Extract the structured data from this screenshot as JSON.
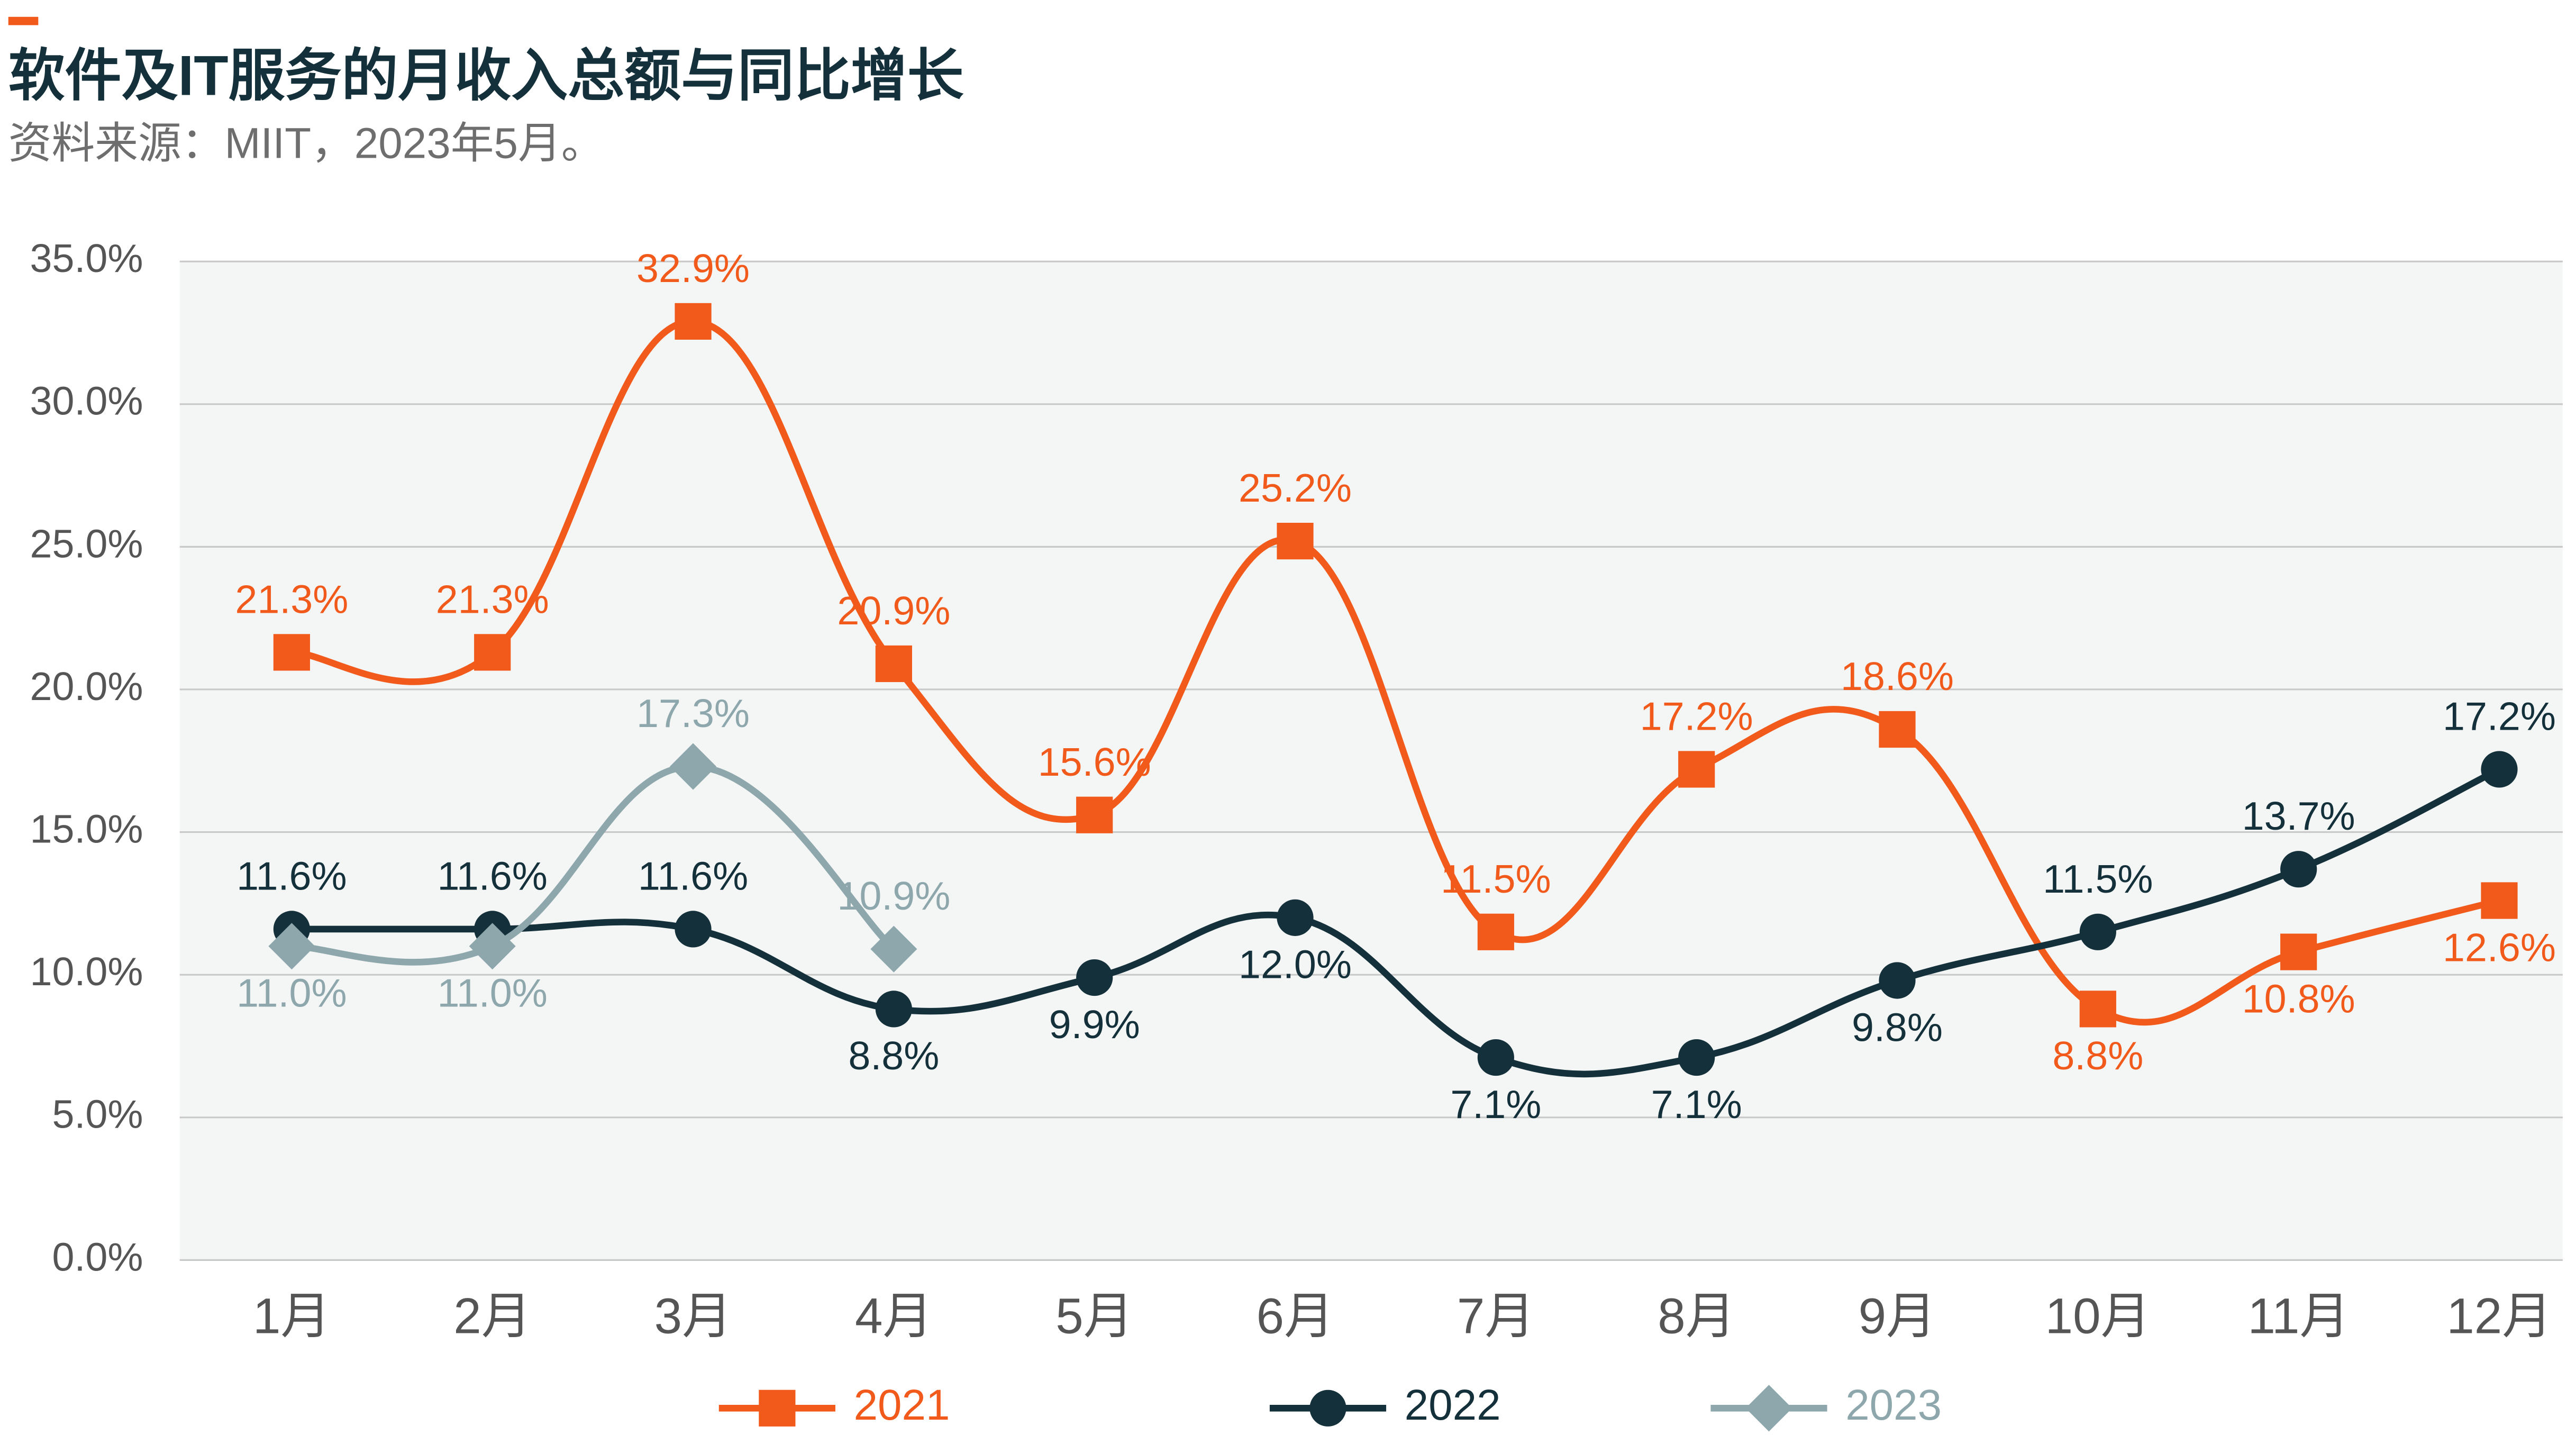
{
  "chart_data": {
    "type": "line",
    "title": "软件及IT服务的月收入总额与同比增长",
    "subtitle": "资料来源：MIIT，2023年5月。",
    "categories": [
      "1月",
      "2月",
      "3月",
      "4月",
      "5月",
      "6月",
      "7月",
      "8月",
      "9月",
      "10月",
      "11月",
      "12月"
    ],
    "series": [
      {
        "name": "2021",
        "color": "#f25a1c",
        "marker": "square",
        "values": [
          21.3,
          21.3,
          32.9,
          20.9,
          15.6,
          25.2,
          11.5,
          17.2,
          18.6,
          8.8,
          10.8,
          12.6
        ],
        "value_labels": [
          "21.3%",
          "21.3%",
          "32.9%",
          "20.9%",
          "15.6%",
          "25.2%",
          "11.5%",
          "17.2%",
          "18.6%",
          "8.8%",
          "10.8%",
          "12.6%"
        ]
      },
      {
        "name": "2022",
        "color": "#14303a",
        "marker": "circle",
        "values": [
          11.6,
          11.6,
          11.6,
          8.8,
          9.9,
          12.0,
          7.1,
          7.1,
          9.8,
          11.5,
          13.7,
          17.2
        ],
        "value_labels": [
          "11.6%",
          "11.6%",
          "11.6%",
          "8.8%",
          "9.9%",
          "12.0%",
          "7.1%",
          "7.1%",
          "9.8%",
          "11.5%",
          "13.7%",
          "17.2%"
        ]
      },
      {
        "name": "2023",
        "color": "#8da7ac",
        "marker": "diamond",
        "values": [
          11.0,
          11.0,
          17.3,
          10.9,
          null,
          null,
          null,
          null,
          null,
          null,
          null,
          null
        ],
        "value_labels": [
          "11.0%",
          "11.0%",
          "17.3%",
          "10.9%",
          null,
          null,
          null,
          null,
          null,
          null,
          null,
          null
        ]
      }
    ],
    "ylim": [
      0,
      35
    ],
    "yticks": [
      {
        "value": 0,
        "label": "0.0%"
      },
      {
        "value": 5,
        "label": "5.0%"
      },
      {
        "value": 10,
        "label": "10.0%"
      },
      {
        "value": 15,
        "label": "15.0%"
      },
      {
        "value": 20,
        "label": "20.0%"
      },
      {
        "value": 25,
        "label": "25.0%"
      },
      {
        "value": 30,
        "label": "30.0%"
      },
      {
        "value": 35,
        "label": "35.0%"
      }
    ],
    "grid": true,
    "legend": "bottom"
  }
}
